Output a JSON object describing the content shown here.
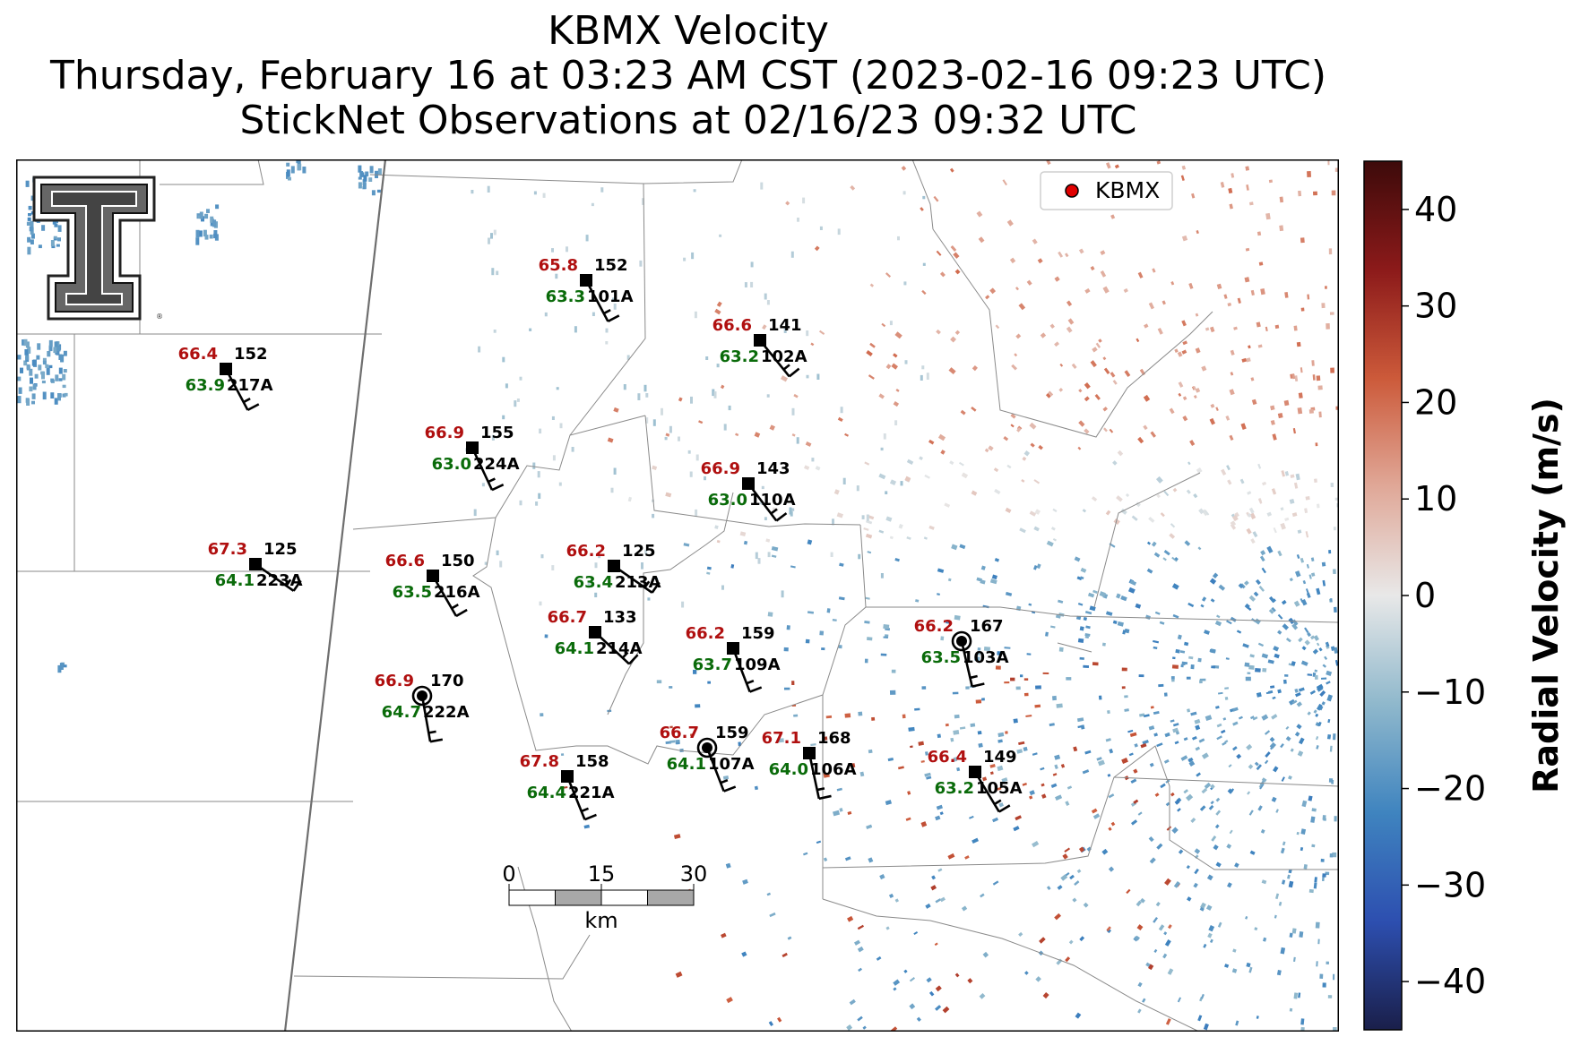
{
  "title": {
    "line1": "KBMX Velocity",
    "line2": "Thursday, February 16 at 03:23 AM CST (2023-02-16 09:23 UTC)",
    "line3": "StickNet Observations at 02/16/23 09:32 UTC"
  },
  "legend": {
    "label": "KBMX",
    "marker_color": "#e00000"
  },
  "colors": {
    "temperature": "#b01010",
    "dewpoint": "#0a6b0a",
    "station_text": "#000000"
  },
  "colorbar": {
    "label": "Radial Velocity (m/s)",
    "range": [
      -45,
      45
    ],
    "ticks": [
      {
        "value": 40,
        "label": "40"
      },
      {
        "value": 30,
        "label": "30"
      },
      {
        "value": 20,
        "label": "20"
      },
      {
        "value": 10,
        "label": "10"
      },
      {
        "value": 0,
        "label": "0"
      },
      {
        "value": -10,
        "label": "−10"
      },
      {
        "value": -20,
        "label": "−20"
      },
      {
        "value": -30,
        "label": "−30"
      },
      {
        "value": -40,
        "label": "−40"
      }
    ],
    "colors": [
      "#1a1f4a",
      "#2d4fb0",
      "#3f84bf",
      "#8fb8cc",
      "#e8e8e8",
      "#e0a898",
      "#cc5a3a",
      "#8c1a1a",
      "#3d0a0a"
    ]
  },
  "scalebar": {
    "ticks": [
      "0",
      "15",
      "30"
    ],
    "unit": "km"
  },
  "logo": {
    "name": "texas-tech-double-t-logo"
  },
  "stations": [
    {
      "id": "101A",
      "temp": "65.8",
      "dew": "63.3",
      "dir": "152"
    },
    {
      "id": "102A",
      "temp": "66.6",
      "dew": "63.2",
      "dir": "141"
    },
    {
      "id": "217A",
      "temp": "66.4",
      "dew": "63.9",
      "dir": "152"
    },
    {
      "id": "224A",
      "temp": "66.9",
      "dew": "63.0",
      "dir": "155"
    },
    {
      "id": "110A",
      "temp": "66.9",
      "dew": "63.0",
      "dir": "143"
    },
    {
      "id": "223A",
      "temp": "67.3",
      "dew": "64.1",
      "dir": "125"
    },
    {
      "id": "216A",
      "temp": "66.6",
      "dew": "63.5",
      "dir": "150"
    },
    {
      "id": "213A",
      "temp": "66.2",
      "dew": "63.4",
      "dir": "125"
    },
    {
      "id": "214A",
      "temp": "66.7",
      "dew": "64.1",
      "dir": "133"
    },
    {
      "id": "109A",
      "temp": "66.2",
      "dew": "63.7",
      "dir": "159"
    },
    {
      "id": "103A",
      "temp": "66.2",
      "dew": "63.5",
      "dir": "167"
    },
    {
      "id": "222A",
      "temp": "66.9",
      "dew": "64.7",
      "dir": "170"
    },
    {
      "id": "107A",
      "temp": "66.7",
      "dew": "64.1",
      "dir": "159"
    },
    {
      "id": "106A",
      "temp": "67.1",
      "dew": "64.0",
      "dir": "168"
    },
    {
      "id": "221A",
      "temp": "67.8",
      "dew": "64.4",
      "dir": "158"
    },
    {
      "id": "105A",
      "temp": "66.4",
      "dew": "63.2",
      "dir": "149"
    }
  ]
}
